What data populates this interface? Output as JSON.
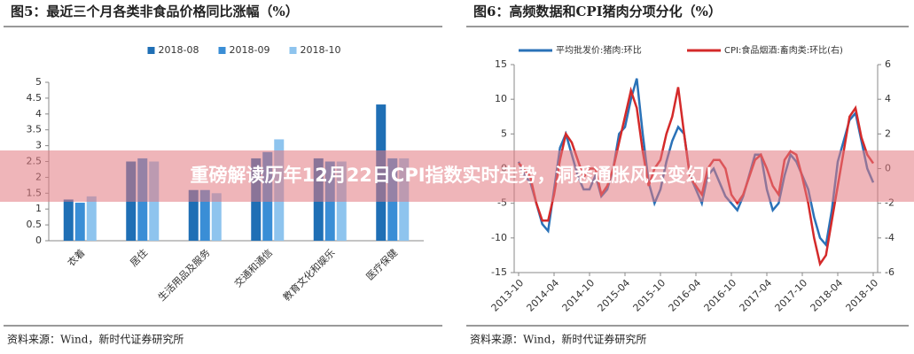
{
  "chart_data": [
    {
      "type": "bar",
      "title": "图5：最近三个月各类非食品价格同比涨幅（%）",
      "categories": [
        "衣着",
        "居住",
        "生活用品及服务",
        "交通和通信",
        "教育文化和娱乐",
        "医疗保健"
      ],
      "series": [
        {
          "name": "2018-08",
          "color": "#1f6fb5",
          "values": [
            1.3,
            2.5,
            1.6,
            2.6,
            2.6,
            4.3
          ]
        },
        {
          "name": "2018-09",
          "color": "#3a8ed6",
          "values": [
            1.2,
            2.6,
            1.6,
            2.8,
            2.5,
            2.6
          ]
        },
        {
          "name": "2018-10",
          "color": "#8ec4ee",
          "values": [
            1.4,
            2.5,
            1.5,
            3.2,
            2.5,
            2.6
          ]
        }
      ],
      "ylim": [
        0,
        5
      ],
      "yticks": [
        0,
        0.5,
        1,
        1.5,
        2,
        2.5,
        3,
        3.5,
        4,
        4.5,
        5
      ],
      "source": "资料来源：Wind，新时代证券研究所"
    },
    {
      "type": "line",
      "title": "图6：高频数据和CPI猪肉分项分化（%）",
      "categories": [
        "2013-10",
        null,
        null,
        null,
        null,
        null,
        "2014-04",
        null,
        null,
        null,
        null,
        null,
        "2014-10",
        null,
        null,
        null,
        null,
        null,
        "2015-04",
        null,
        null,
        null,
        null,
        null,
        "2015-10",
        null,
        null,
        null,
        null,
        null,
        "2016-04",
        null,
        null,
        null,
        null,
        null,
        "2016-10",
        null,
        null,
        null,
        null,
        null,
        "2017-04",
        null,
        null,
        null,
        null,
        null,
        "2017-10",
        null,
        null,
        null,
        null,
        null,
        "2018-04",
        null,
        null,
        null,
        null,
        null,
        "2018-10"
      ],
      "series": [
        {
          "name": "平均批发价:猪肉:环比",
          "color": "#2a72b8",
          "axis": "y",
          "values": [
            1,
            -1,
            -2,
            -5,
            -8,
            -9,
            -3,
            3,
            5,
            2,
            -1,
            -3,
            -3,
            -1,
            -4,
            -3,
            0,
            5,
            6,
            10,
            13,
            5,
            -2,
            -5,
            -3,
            1,
            4,
            6,
            5,
            -1,
            -3,
            -5,
            -1,
            0,
            -2,
            -4,
            -5,
            -6,
            -4,
            -1,
            2,
            2,
            -3,
            -6,
            -5,
            -1,
            2,
            1,
            -1,
            -3,
            -7,
            -10,
            -11,
            -6,
            1,
            4,
            7,
            8,
            4,
            0,
            -2
          ]
        },
        {
          "name": "CPI:食品烟酒:畜肉类:环比(右)",
          "color": "#d42a2a",
          "axis": "y2",
          "values": [
            0.3,
            0,
            -0.5,
            -2,
            -3,
            -3,
            -1.5,
            0.5,
            2,
            1.5,
            0.5,
            -0.5,
            0,
            0,
            -1.5,
            -1,
            0,
            1.5,
            3,
            4.5,
            3.5,
            1,
            -1,
            0,
            0.5,
            2,
            3,
            4.7,
            2,
            -0.5,
            -1,
            -1.5,
            0,
            0.5,
            0.5,
            0,
            -1.5,
            -2,
            -1.5,
            -0.5,
            0.5,
            0.8,
            0,
            -1,
            -1.5,
            0.5,
            1,
            0.8,
            -0.5,
            -2,
            -4,
            -5.5,
            -5,
            -3,
            -1,
            1,
            3,
            3.5,
            1.8,
            0.8,
            0.3
          ]
        }
      ],
      "ylim": [
        -15,
        15
      ],
      "yticks": [
        -15,
        -10,
        -5,
        0,
        5,
        10,
        15
      ],
      "y2lim": [
        -6,
        6
      ],
      "y2ticks": [
        -6,
        -4,
        -2,
        0,
        2,
        4,
        6
      ],
      "source": "资料来源：Wind，新时代证券研究所"
    }
  ],
  "banner": {
    "text": "重磅解读历年12月22日CPI指数实时走势，洞悉通胀风云变幻！"
  }
}
